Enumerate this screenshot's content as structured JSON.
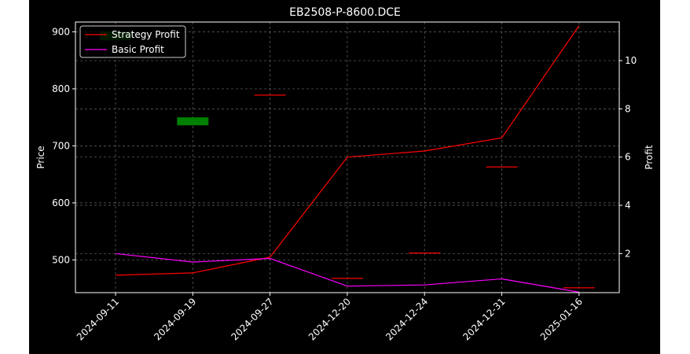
{
  "chart_data": {
    "type": "line",
    "title": "EB2508-P-8600.DCE",
    "x_categories": [
      "2024-09-11",
      "2024-09-19",
      "2024-09-27",
      "2024-12-20",
      "2024-12-24",
      "2024-12-31",
      "2025-01-16"
    ],
    "left_axis": {
      "label": "Price",
      "ticks": [
        500,
        600,
        700,
        800,
        900
      ],
      "range": [
        442.5,
        917.2
      ]
    },
    "right_axis": {
      "label": "Profit",
      "ticks": [
        2,
        4,
        6,
        8,
        10
      ],
      "range": [
        0.38,
        11.6
      ]
    },
    "series": [
      {
        "name": "Strategy Profit",
        "axis": "right",
        "color": "#ff0000",
        "values": [
          1.1,
          1.2,
          1.85,
          6.0,
          6.25,
          6.8,
          11.45
        ]
      },
      {
        "name": "Basic Profit",
        "axis": "right",
        "color": "#ff00ff",
        "values": [
          2.0,
          1.65,
          1.8,
          0.65,
          0.7,
          0.95,
          0.4
        ]
      }
    ],
    "price_marks": [
      {
        "index": 0,
        "open": 901.0,
        "close": 885.0,
        "color": "#008000"
      },
      {
        "index": 1,
        "open": 750.0,
        "close": 736.0,
        "color": "#008000"
      },
      {
        "index": 2,
        "open": 789.0,
        "close": 789.0,
        "color": "#ff0000"
      },
      {
        "index": 3,
        "open": 467.5,
        "close": 467.5,
        "color": "#ff0000"
      },
      {
        "index": 4,
        "open": 512.0,
        "close": 512.0,
        "color": "#ff0000"
      },
      {
        "index": 5,
        "open": 663.0,
        "close": 663.0,
        "color": "#ff0000"
      },
      {
        "index": 6,
        "open": 451.0,
        "close": 451.0,
        "color": "#ff0000"
      }
    ],
    "grid": true,
    "legend_position": "top-left"
  },
  "colors": {
    "background": "#000000",
    "axes": "#ffffff",
    "grid": "#808080",
    "page": "#ffffff"
  }
}
